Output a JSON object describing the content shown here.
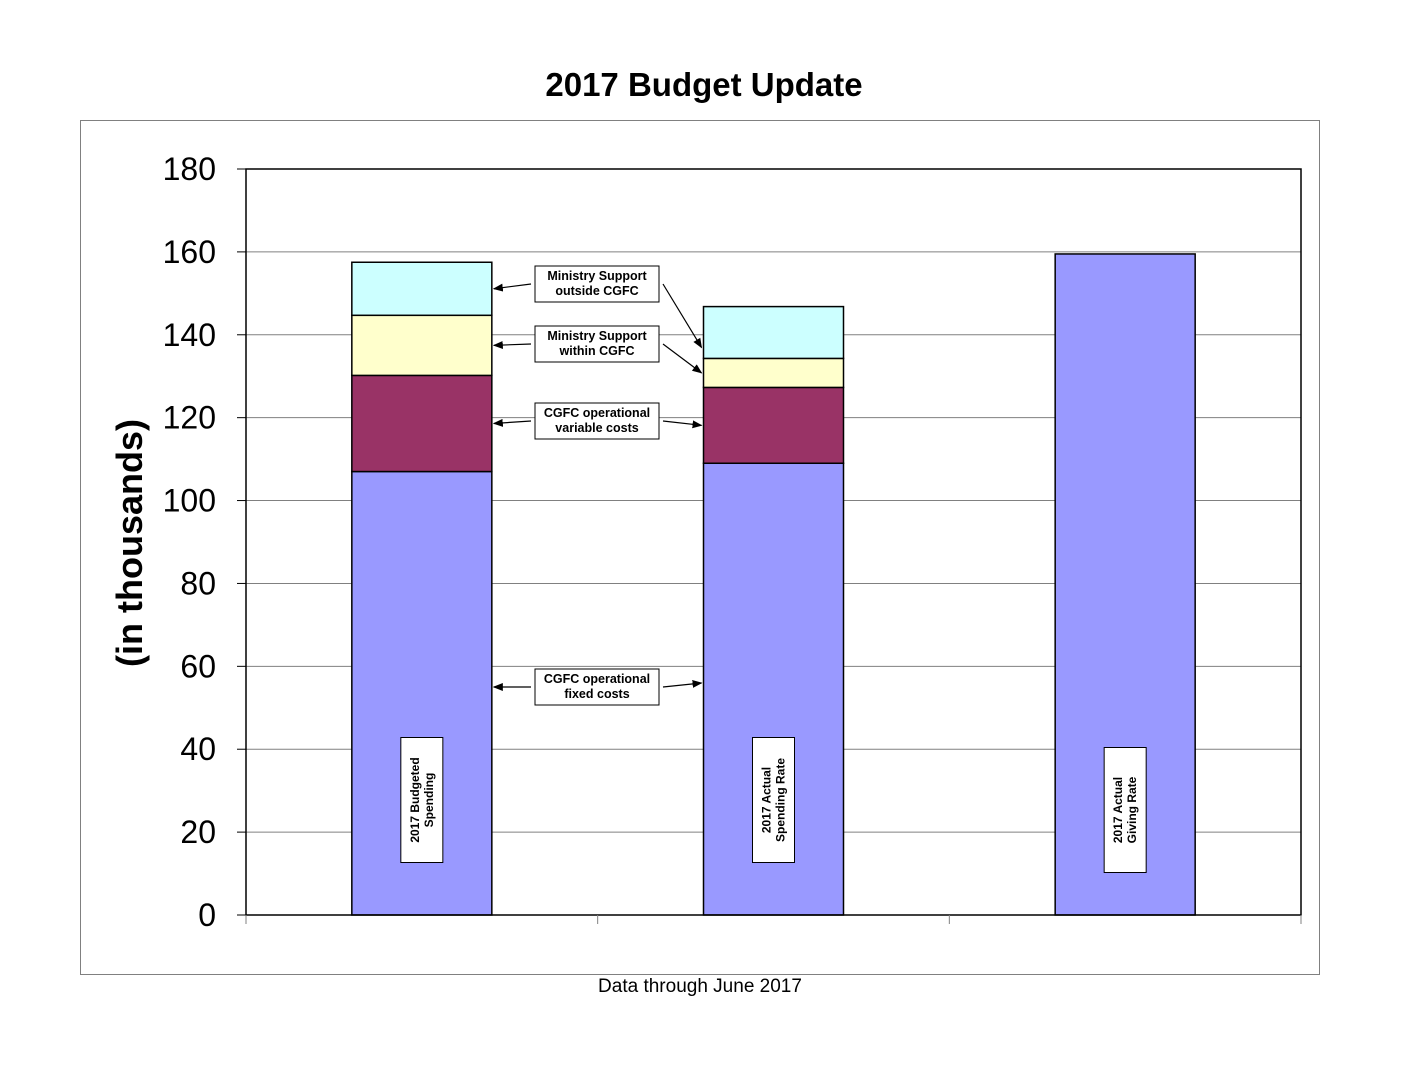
{
  "chart_data": {
    "type": "bar",
    "stacked": true,
    "title": "2017 Budget Update",
    "ylabel": "(in thousands)",
    "footnote": "Data through June 2017",
    "ylim": [
      0,
      180
    ],
    "ytick_step": 20,
    "grid": true,
    "categories": [
      "2017  Budgeted Spending",
      "2017 Actual Spending Rate",
      "2017 Actual Giving Rate"
    ],
    "bar_labels": [
      [
        "2017  Budgeted",
        "Spending"
      ],
      [
        "2017 Actual",
        "Spending Rate"
      ],
      [
        "2017 Actual",
        "Giving Rate"
      ]
    ],
    "series": [
      {
        "name": "CGFC operational fixed costs",
        "lines": [
          "CGFC operational",
          "fixed costs"
        ],
        "color": "#9999ff",
        "values": [
          107,
          109,
          159.5
        ]
      },
      {
        "name": "CGFC operational variable costs",
        "lines": [
          "CGFC operational",
          "variable costs"
        ],
        "color": "#993366",
        "values": [
          23.2,
          18.3,
          0
        ]
      },
      {
        "name": "Ministry Support within CGFC",
        "lines": [
          "Ministry Support",
          "within  CGFC"
        ],
        "color": "#ffffcc",
        "values": [
          14.5,
          7,
          0
        ]
      },
      {
        "name": "Ministry Support outside CGFC",
        "lines": [
          "Ministry Support",
          "outside CGFC"
        ],
        "color": "#ccffff",
        "values": [
          12.8,
          12.5,
          0
        ]
      }
    ]
  }
}
